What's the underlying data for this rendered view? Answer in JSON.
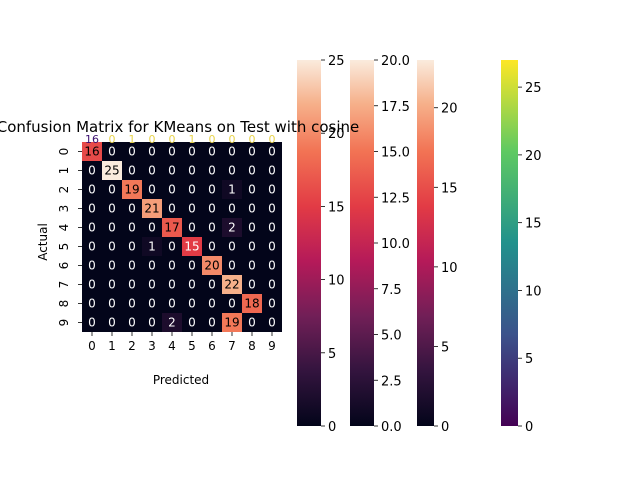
{
  "chart_data": {
    "type": "heatmap",
    "title": "Confusion Matrix for KMeans on Test with cosine",
    "xlabel": "Predicted",
    "ylabel": "Actual",
    "x_ticks": [
      "0",
      "1",
      "2",
      "3",
      "4",
      "5",
      "6",
      "7",
      "8",
      "9"
    ],
    "y_ticks": [
      "0",
      "1",
      "2",
      "3",
      "4",
      "5",
      "6",
      "7",
      "8",
      "9"
    ],
    "matrix": [
      [
        16,
        0,
        0,
        0,
        0,
        0,
        0,
        0,
        0,
        0
      ],
      [
        0,
        25,
        0,
        0,
        0,
        0,
        0,
        0,
        0,
        0
      ],
      [
        0,
        0,
        19,
        0,
        0,
        0,
        0,
        1,
        0,
        0
      ],
      [
        0,
        0,
        0,
        21,
        0,
        0,
        0,
        0,
        0,
        0
      ],
      [
        0,
        0,
        0,
        0,
        17,
        0,
        0,
        2,
        0,
        0
      ],
      [
        0,
        0,
        0,
        1,
        0,
        15,
        0,
        0,
        0,
        0
      ],
      [
        0,
        0,
        0,
        0,
        0,
        0,
        20,
        0,
        0,
        0
      ],
      [
        0,
        0,
        0,
        0,
        0,
        0,
        0,
        22,
        0,
        0
      ],
      [
        0,
        0,
        0,
        0,
        0,
        0,
        0,
        0,
        18,
        0
      ],
      [
        0,
        0,
        0,
        0,
        2,
        0,
        0,
        19,
        0,
        0
      ]
    ],
    "top_row_labels": [
      "16",
      "0",
      "1",
      "0",
      "0",
      "1",
      "0",
      "0",
      "0",
      "0"
    ],
    "colorbars": [
      {
        "colormap": "rocket",
        "range": [
          0,
          25
        ],
        "ticks": [
          "0",
          "5",
          "10",
          "15",
          "20",
          "25"
        ]
      },
      {
        "colormap": "rocket",
        "range": [
          0,
          20
        ],
        "ticks": [
          "0.0",
          "2.5",
          "5.0",
          "7.5",
          "10.0",
          "12.5",
          "15.0",
          "17.5",
          "20.0"
        ]
      },
      {
        "colormap": "rocket",
        "range": [
          0,
          23
        ],
        "ticks": [
          "0",
          "5",
          "10",
          "15",
          "20"
        ]
      },
      {
        "colormap": "viridis",
        "range": [
          0,
          27
        ],
        "ticks": [
          "0",
          "5",
          "10",
          "15",
          "20",
          "25"
        ]
      }
    ],
    "grid": false,
    "legend": "none"
  }
}
